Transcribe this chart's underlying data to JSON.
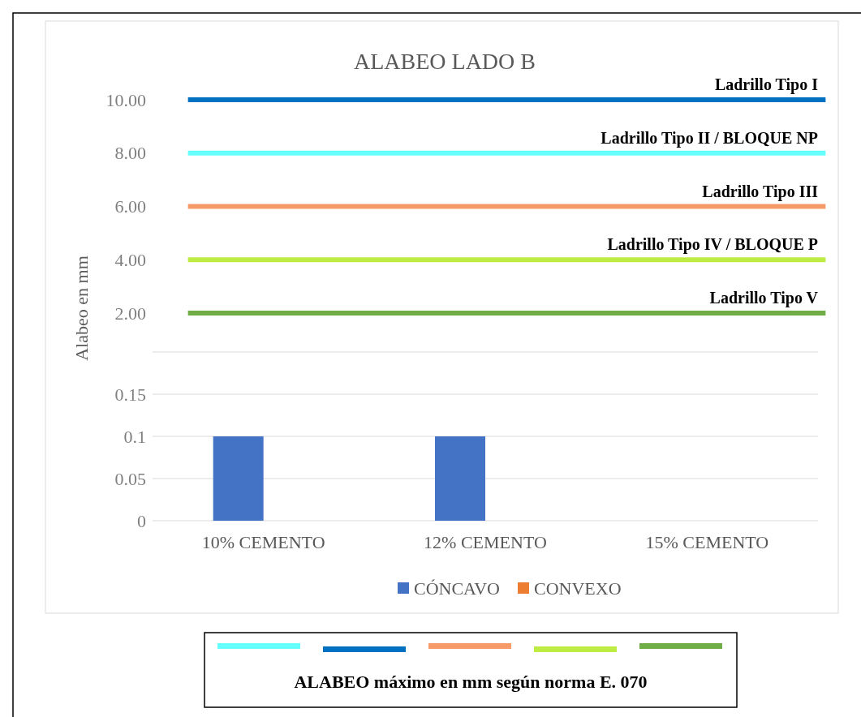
{
  "chart_data": [
    {
      "type": "line",
      "title": "ALABEO  LADO B",
      "ylabel": "Alabeo  en mm",
      "categories": [
        null,
        null,
        null,
        null,
        null,
        null,
        null,
        null,
        null,
        null
      ],
      "ylim": [
        2,
        10
      ],
      "yticks": [
        {
          "value": 2,
          "label": "2.00"
        },
        {
          "value": 4,
          "label": "4.00"
        },
        {
          "value": 6,
          "label": "6.00"
        },
        {
          "value": 8,
          "label": "8.00"
        },
        {
          "value": 10,
          "label": "10.00"
        }
      ],
      "tick_labels": "y",
      "series": [
        {
          "name": "Ladrillo Tipo II / BLOQUE NP",
          "color": "#66ffff",
          "values": [
            8,
            8,
            8,
            8,
            8,
            8,
            8,
            8,
            8,
            8
          ]
        },
        {
          "name": "Ladrillo Tipo I",
          "color": "#0070c0",
          "values": [
            10,
            10,
            10,
            10,
            10,
            10,
            10,
            10,
            10,
            10
          ]
        },
        {
          "name": "Ladrillo  Tipo  III",
          "color": "#f79a6a",
          "values": [
            6,
            6,
            6,
            6,
            6,
            6,
            6,
            6,
            6,
            6
          ]
        },
        {
          "name": "Ladrillo Tipo IV / BLOQUE P",
          "color": "#bfec42",
          "values": [
            4,
            4,
            4,
            4,
            4,
            4,
            4,
            4,
            4,
            4
          ]
        },
        {
          "name": "Ladrillo Tipo V",
          "color": "#70ad47",
          "values": [
            2,
            2,
            2,
            2,
            2,
            2,
            2,
            2,
            2,
            2
          ]
        }
      ],
      "annotations": [
        "ALABEO  máximo  en mm  según  norma  E. 070"
      ]
    },
    {
      "type": "bar",
      "categories": [
        "10% CEMENTO",
        "12% CEMENTO",
        "15% CEMENTO"
      ],
      "series": [
        {
          "name": "CÓNCAVO",
          "color": "#4472c4",
          "values": [
            0.1,
            0.1,
            0
          ]
        },
        {
          "name": "CONVEXO",
          "color": "#ed7d31",
          "values": [
            0,
            0,
            0
          ]
        }
      ],
      "ylim": [
        0,
        0.2
      ],
      "yticks": [
        0,
        0.05,
        0.1,
        0.15,
        {
          "value": 0.2,
          "label": null
        }
      ],
      "grid": "y",
      "legend": "bottom"
    }
  ]
}
